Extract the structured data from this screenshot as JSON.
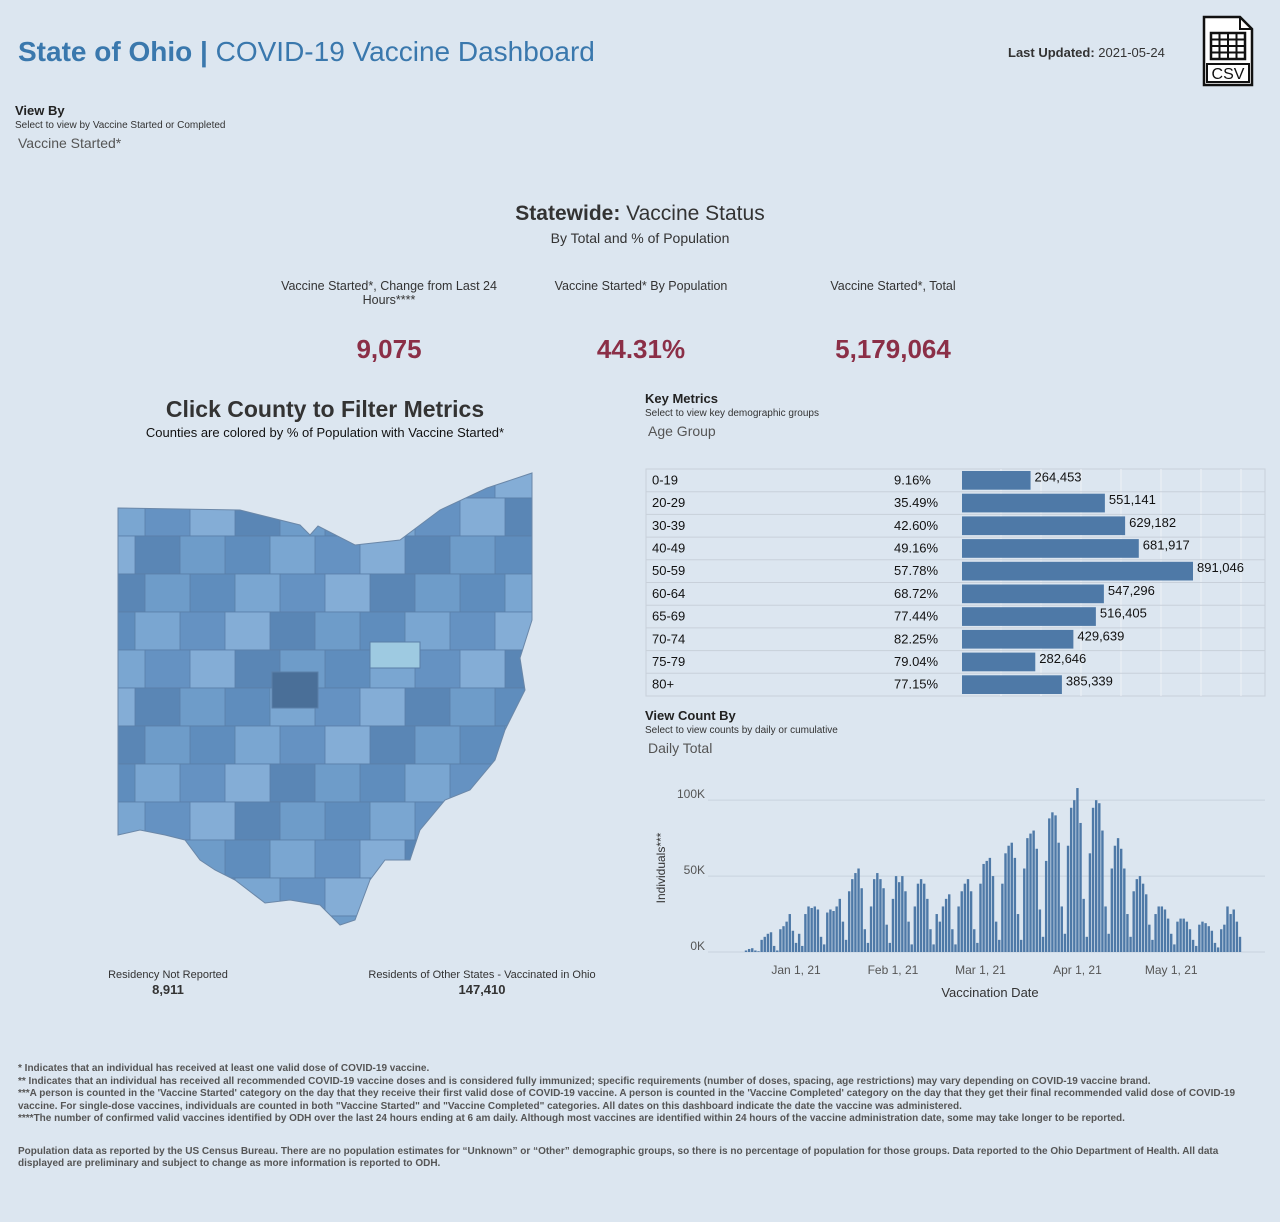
{
  "header": {
    "title_bold": "State of Ohio |",
    "title_rest": "COVID-19 Vaccine Dashboard",
    "updated_label": "Last Updated:",
    "updated_value": "2021-05-24",
    "csv_icon": "CSV"
  },
  "view_by": {
    "label": "View By",
    "hint": "Select to view by Vaccine Started or Completed",
    "value": "Vaccine Started*"
  },
  "statewide": {
    "title_bold": "Statewide:",
    "title_rest": "Vaccine Status",
    "subtitle": "By Total and % of Population",
    "metrics": [
      {
        "label": "Vaccine Started*, Change from Last 24 Hours****",
        "value": "9,075"
      },
      {
        "label": "Vaccine Started* By Population",
        "value": "44.31%"
      },
      {
        "label": "Vaccine Started*, Total",
        "value": "5,179,064"
      }
    ]
  },
  "map": {
    "title": "Click County to Filter Metrics",
    "subtitle": "Counties are colored by % of Population with Vaccine Started*",
    "notes": [
      {
        "label": "Residency Not Reported",
        "value": "8,911"
      },
      {
        "label": "Residents of Other States - Vaccinated in Ohio",
        "value": "147,410"
      }
    ]
  },
  "key_metrics": {
    "label": "Key Metrics",
    "hint": "Select to view key demographic groups",
    "value": "Age Group"
  },
  "view_count": {
    "label": "View Count By",
    "hint": "Select to view counts by daily or cumulative",
    "value": "Daily Total"
  },
  "chart_data": [
    {
      "type": "hbar",
      "color": "#4e79a7",
      "categories": [
        "0-19",
        "20-29",
        "30-39",
        "40-49",
        "50-59",
        "60-64",
        "65-69",
        "70-74",
        "75-79",
        "80+"
      ],
      "population_percent": [
        "9.16%",
        "35.49%",
        "42.60%",
        "49.16%",
        "57.78%",
        "68.72%",
        "77.44%",
        "82.25%",
        "79.04%",
        "77.15%"
      ],
      "values": [
        264453,
        551141,
        629182,
        681917,
        891046,
        547296,
        516405,
        429639,
        282646,
        385339
      ],
      "value_labels": [
        "264,453",
        "551,141",
        "629,182",
        "681,917",
        "891,046",
        "547,296",
        "516,405",
        "429,639",
        "282,646",
        "385,339"
      ]
    },
    {
      "type": "bar",
      "color": "#4e79a7",
      "xlabel": "Vaccination Date",
      "ylabel": "Individuals***",
      "ylim": [
        0,
        110000
      ],
      "yticks": [
        {
          "value": 0,
          "label": "0K"
        },
        {
          "value": 50000,
          "label": "50K"
        },
        {
          "value": 100000,
          "label": "100K"
        }
      ],
      "grid": true,
      "categories": [
        null,
        null,
        null,
        null,
        null,
        null,
        null,
        null,
        null,
        null,
        null,
        null,
        null,
        null,
        null,
        null,
        "Jan 1, 21",
        null,
        null,
        null,
        null,
        null,
        null,
        null,
        null,
        null,
        null,
        null,
        null,
        null,
        null,
        null,
        null,
        null,
        null,
        null,
        null,
        null,
        null,
        null,
        null,
        null,
        null,
        null,
        null,
        null,
        null,
        "Feb 1, 21",
        null,
        null,
        null,
        null,
        null,
        null,
        null,
        null,
        null,
        null,
        null,
        null,
        null,
        null,
        null,
        null,
        null,
        null,
        null,
        null,
        null,
        null,
        null,
        null,
        null,
        null,
        null,
        "Mar 1, 21",
        null,
        null,
        null,
        null,
        null,
        null,
        null,
        null,
        null,
        null,
        null,
        null,
        null,
        null,
        null,
        null,
        null,
        null,
        null,
        null,
        null,
        null,
        null,
        null,
        null,
        null,
        null,
        null,
        null,
        null,
        "Apr 1, 21",
        null,
        null,
        null,
        null,
        null,
        null,
        null,
        null,
        null,
        null,
        null,
        null,
        null,
        null,
        null,
        null,
        null,
        null,
        null,
        null,
        null,
        null,
        null,
        null,
        null,
        null,
        null,
        null,
        null,
        "May 1, 21",
        null,
        null,
        null,
        null,
        null,
        null,
        null,
        null,
        null,
        null,
        null,
        null,
        null,
        null,
        null,
        null,
        null,
        null,
        null,
        null,
        null,
        null
      ],
      "values": [
        1000,
        2000,
        2500,
        1000,
        500,
        8000,
        10000,
        12000,
        13000,
        4000,
        1000,
        15000,
        17000,
        20000,
        25000,
        14000,
        6000,
        12000,
        4000,
        25000,
        30000,
        29000,
        30000,
        28000,
        10000,
        5000,
        26000,
        28000,
        27000,
        30000,
        35000,
        20000,
        8000,
        40000,
        48000,
        52000,
        55000,
        42000,
        15000,
        6000,
        30000,
        48000,
        52000,
        48000,
        42000,
        18000,
        6000,
        35000,
        50000,
        46000,
        50000,
        40000,
        20000,
        5000,
        30000,
        45000,
        48000,
        45000,
        35000,
        15000,
        5000,
        25000,
        20000,
        30000,
        35000,
        38000,
        15000,
        5000,
        30000,
        40000,
        45000,
        48000,
        40000,
        15000,
        6000,
        45000,
        58000,
        60000,
        62000,
        50000,
        20000,
        8000,
        45000,
        65000,
        70000,
        72000,
        62000,
        25000,
        8000,
        55000,
        75000,
        78000,
        80000,
        68000,
        28000,
        10000,
        60000,
        88000,
        92000,
        90000,
        72000,
        30000,
        12000,
        70000,
        95000,
        100000,
        108000,
        85000,
        35000,
        10000,
        65000,
        95000,
        100000,
        98000,
        80000,
        30000,
        12000,
        55000,
        70000,
        75000,
        68000,
        55000,
        25000,
        10000,
        40000,
        48000,
        50000,
        45000,
        38000,
        18000,
        8000,
        25000,
        30000,
        30000,
        28000,
        22000,
        12000,
        5000,
        20000,
        22000,
        22000,
        20000,
        15000,
        8000,
        4000,
        18000,
        20000,
        19000,
        17000,
        14000,
        6000,
        3000,
        15000,
        18000,
        30000,
        25000,
        28000,
        20000,
        10000
      ]
    }
  ],
  "footnotes": [
    "* Indicates that an individual has received at least one valid dose of COVID-19 vaccine.",
    "** Indicates that an individual has received all recommended COVID-19 vaccine doses and is considered fully immunized; specific requirements (number of doses, spacing, age restrictions) may vary depending on COVID-19 vaccine brand.",
    "***A person is counted in the 'Vaccine Started' category on the day that they receive their first valid dose of COVID-19 vaccine.  A person is counted in the 'Vaccine Completed' category on the day that they get their final recommended valid dose of COVID-19 vaccine. For single-dose vaccines, individuals are counted in both \"Vaccine Started\" and \"Vaccine Completed\" categories. All dates on this dashboard indicate the date the vaccine was administered.",
    "****The number of confirmed valid vaccines identified by ODH over the last 24 hours ending at 6 am daily. Although most vaccines are identified within 24 hours of the vaccine administration date, some may take longer to be reported.",
    "Population data as reported by the US Census Bureau. There are no population estimates for “Unknown” or “Other” demographic groups, so there is no percentage of population for those groups.  Data reported to the Ohio Department of Health.  All data displayed are preliminary and subject to change as more information is reported to ODH."
  ]
}
